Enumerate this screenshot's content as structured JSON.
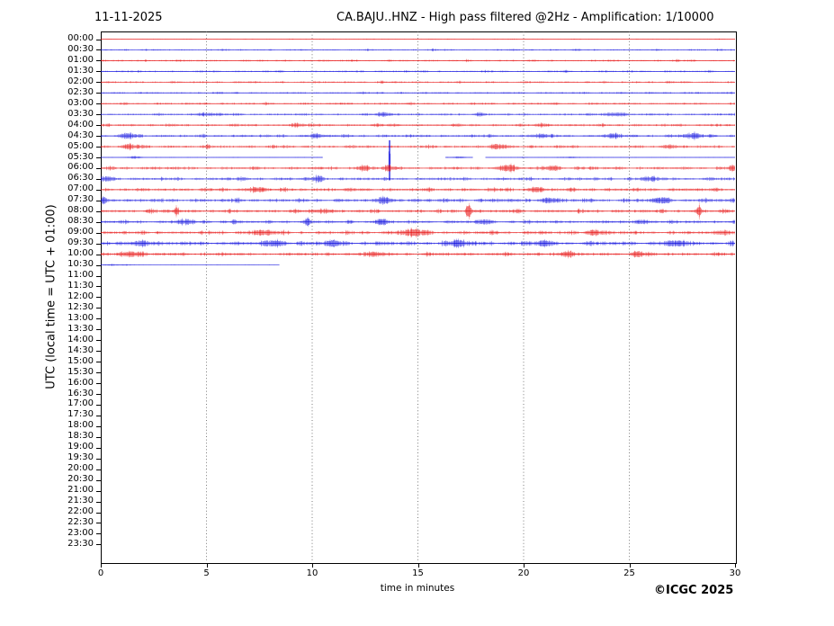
{
  "header": {
    "date": "11-11-2025",
    "title": "CA.BAJU..HNZ - High pass filtered @2Hz - Amplification: 1/10000"
  },
  "axes": {
    "y_label": "UTC (local time = UTC + 01:00)",
    "x_label": "time in minutes",
    "x_ticks": [
      0,
      5,
      10,
      15,
      20,
      25,
      30
    ],
    "x_range": [
      0,
      30
    ],
    "grid_minutes": [
      5,
      10,
      15,
      20,
      25
    ],
    "grid_style": "dotted"
  },
  "footer": {
    "copyright": "©ICGC 2025"
  },
  "chart_data": {
    "type": "line",
    "subtype": "helicorder-seismogram",
    "title": "CA.BAJU..HNZ - High pass filtered @2Hz - Amplification: 1/10000",
    "date": "11-11-2025",
    "xlabel": "time in minutes",
    "ylabel": "UTC (local time = UTC + 01:00)",
    "xlim": [
      0,
      30
    ],
    "colors": {
      "red": "#e60000",
      "blue": "#0000dd"
    },
    "recording_stops_at": "10:30 + 8.4 min",
    "rows": [
      {
        "label": "00:00",
        "color": "red",
        "noise": 0.4
      },
      {
        "label": "00:30",
        "color": "blue",
        "noise": 1.1
      },
      {
        "label": "01:00",
        "color": "red",
        "noise": 1.2
      },
      {
        "label": "01:30",
        "color": "blue",
        "noise": 1.2
      },
      {
        "label": "02:00",
        "color": "red",
        "noise": 1.3
      },
      {
        "label": "02:30",
        "color": "blue",
        "noise": 1.2
      },
      {
        "label": "03:00",
        "color": "red",
        "noise": 1.3
      },
      {
        "label": "03:30",
        "color": "blue",
        "noise": 1.4,
        "events": [
          {
            "t": 5,
            "amp": 1.5,
            "w": 0.5
          },
          {
            "t": 13.5,
            "amp": 1.8,
            "w": 0.4
          },
          {
            "t": 17.9,
            "amp": 1.2,
            "w": 0.3
          },
          {
            "t": 24.3,
            "amp": 2.0,
            "w": 0.5
          }
        ]
      },
      {
        "label": "04:00",
        "color": "red",
        "noise": 1.6,
        "events": [
          {
            "t": 9.3,
            "amp": 1.5,
            "w": 0.4
          },
          {
            "t": 21,
            "amp": 1.5,
            "w": 0.3
          }
        ]
      },
      {
        "label": "04:30",
        "color": "blue",
        "noise": 1.7,
        "events": [
          {
            "t": 1.3,
            "amp": 2.2,
            "w": 0.4
          },
          {
            "t": 10.2,
            "amp": 2.5,
            "w": 0.3
          },
          {
            "t": 20.8,
            "amp": 2.0,
            "w": 0.35
          },
          {
            "t": 24.2,
            "amp": 2.0,
            "w": 0.4
          },
          {
            "t": 28,
            "amp": 2.2,
            "w": 0.5
          }
        ]
      },
      {
        "label": "05:00",
        "color": "red",
        "noise": 1.8,
        "events": [
          {
            "t": 1.4,
            "amp": 2.0,
            "w": 0.4
          },
          {
            "t": 19,
            "amp": 2.0,
            "w": 0.4
          },
          {
            "t": 26.8,
            "amp": 2.0,
            "w": 0.3
          }
        ]
      },
      {
        "label": "05:30",
        "color": "blue",
        "noise": 0.35,
        "segments": [
          [
            0,
            10.5
          ],
          [
            16.3,
            17.6
          ],
          [
            18.2,
            30
          ]
        ],
        "events": [
          {
            "t": 1.6,
            "amp": 1.2,
            "w": 0.4
          },
          {
            "t": 13.66,
            "spike": true,
            "up": 19,
            "down": 25.5
          },
          {
            "t": 16.9,
            "amp": 1.0,
            "w": 0.3
          },
          {
            "t": 22.2,
            "amp": 0.8,
            "w": 0.5
          }
        ]
      },
      {
        "label": "06:00",
        "color": "red",
        "noise": 1.9,
        "events": [
          {
            "t": 12.4,
            "amp": 2.5,
            "w": 0.3
          },
          {
            "t": 13.6,
            "amp": 3.0,
            "w": 0.2
          },
          {
            "t": 19.2,
            "amp": 3.0,
            "w": 0.4
          },
          {
            "t": 21.4,
            "amp": 2.5,
            "w": 0.3
          },
          {
            "t": 29.9,
            "amp": 3.0,
            "w": 0.2
          }
        ]
      },
      {
        "label": "06:30",
        "color": "blue",
        "noise": 1.9,
        "events": [
          {
            "t": 0.3,
            "amp": 2.5,
            "w": 0.3
          },
          {
            "t": 10.3,
            "amp": 3.2,
            "w": 0.25
          },
          {
            "t": 26,
            "amp": 2.0,
            "w": 0.4
          }
        ]
      },
      {
        "label": "07:00",
        "color": "red",
        "noise": 2.1,
        "events": [
          {
            "t": 7.4,
            "amp": 2.5,
            "w": 0.4
          },
          {
            "t": 20.6,
            "amp": 2.0,
            "w": 0.4
          }
        ]
      },
      {
        "label": "07:30",
        "color": "blue",
        "noise": 2.3,
        "events": [
          {
            "t": 0.15,
            "amp": 4.0,
            "w": 0.15
          },
          {
            "t": 13.5,
            "amp": 2.5,
            "w": 0.4
          },
          {
            "t": 21.2,
            "amp": 2.5,
            "w": 0.4
          },
          {
            "t": 26.5,
            "amp": 2.5,
            "w": 0.4
          }
        ]
      },
      {
        "label": "08:00",
        "color": "red",
        "noise": 2.1,
        "events": [
          {
            "t": 3.6,
            "amp": 4.5,
            "w": 0.1
          },
          {
            "t": 10.5,
            "amp": 2.0,
            "w": 0.4
          },
          {
            "t": 17.4,
            "amp": 8.0,
            "w": 0.12
          },
          {
            "t": 28.3,
            "amp": 5.5,
            "w": 0.1
          }
        ]
      },
      {
        "label": "08:30",
        "color": "blue",
        "noise": 1.9,
        "events": [
          {
            "t": 4,
            "amp": 2.2,
            "w": 0.4
          },
          {
            "t": 6.3,
            "amp": 2.8,
            "w": 0.12
          },
          {
            "t": 9.8,
            "amp": 4.0,
            "w": 0.15
          },
          {
            "t": 13.3,
            "amp": 2.8,
            "w": 0.3
          },
          {
            "t": 18.1,
            "amp": 2.4,
            "w": 0.3
          },
          {
            "t": 25.7,
            "amp": 2.0,
            "w": 0.3
          }
        ]
      },
      {
        "label": "09:00",
        "color": "red",
        "noise": 2.2,
        "events": [
          {
            "t": 7.7,
            "amp": 2.5,
            "w": 0.5
          },
          {
            "t": 14.8,
            "amp": 3.0,
            "w": 0.6
          },
          {
            "t": 23.3,
            "amp": 2.5,
            "w": 0.4
          },
          {
            "t": 29.5,
            "amp": 2.5,
            "w": 0.3
          }
        ]
      },
      {
        "label": "09:30",
        "color": "blue",
        "noise": 2.6,
        "events": [
          {
            "t": 2,
            "amp": 2.5,
            "w": 0.5
          },
          {
            "t": 8.3,
            "amp": 2.5,
            "w": 0.5
          },
          {
            "t": 11,
            "amp": 2.5,
            "w": 0.4
          },
          {
            "t": 16.9,
            "amp": 2.8,
            "w": 0.4
          },
          {
            "t": 21,
            "amp": 2.5,
            "w": 0.4
          },
          {
            "t": 27.3,
            "amp": 2.5,
            "w": 0.5
          }
        ]
      },
      {
        "label": "10:00",
        "color": "red",
        "noise": 2.1,
        "events": [
          {
            "t": 1.4,
            "amp": 2.8,
            "w": 0.5
          },
          {
            "t": 13,
            "amp": 2.0,
            "w": 0.4
          },
          {
            "t": 22,
            "amp": 2.2,
            "w": 0.4
          },
          {
            "t": 25.4,
            "amp": 2.5,
            "w": 0.3
          }
        ]
      },
      {
        "label": "10:30",
        "color": "blue",
        "noise": 0.3,
        "segments": [
          [
            0,
            8.45
          ]
        ],
        "events": [
          {
            "t": 0.8,
            "amp": 0.8,
            "w": 0.8
          }
        ]
      },
      {
        "label": "11:00",
        "color": null
      },
      {
        "label": "11:30",
        "color": null
      },
      {
        "label": "12:00",
        "color": null
      },
      {
        "label": "12:30",
        "color": null
      },
      {
        "label": "13:00",
        "color": null
      },
      {
        "label": "13:30",
        "color": null
      },
      {
        "label": "14:00",
        "color": null
      },
      {
        "label": "14:30",
        "color": null
      },
      {
        "label": "15:00",
        "color": null
      },
      {
        "label": "15:30",
        "color": null
      },
      {
        "label": "16:00",
        "color": null
      },
      {
        "label": "16:30",
        "color": null
      },
      {
        "label": "17:00",
        "color": null
      },
      {
        "label": "17:30",
        "color": null
      },
      {
        "label": "18:00",
        "color": null
      },
      {
        "label": "18:30",
        "color": null
      },
      {
        "label": "19:00",
        "color": null
      },
      {
        "label": "19:30",
        "color": null
      },
      {
        "label": "20:00",
        "color": null
      },
      {
        "label": "20:30",
        "color": null
      },
      {
        "label": "21:00",
        "color": null
      },
      {
        "label": "21:30",
        "color": null
      },
      {
        "label": "22:00",
        "color": null
      },
      {
        "label": "22:30",
        "color": null
      },
      {
        "label": "23:00",
        "color": null
      },
      {
        "label": "23:30",
        "color": null
      }
    ]
  }
}
